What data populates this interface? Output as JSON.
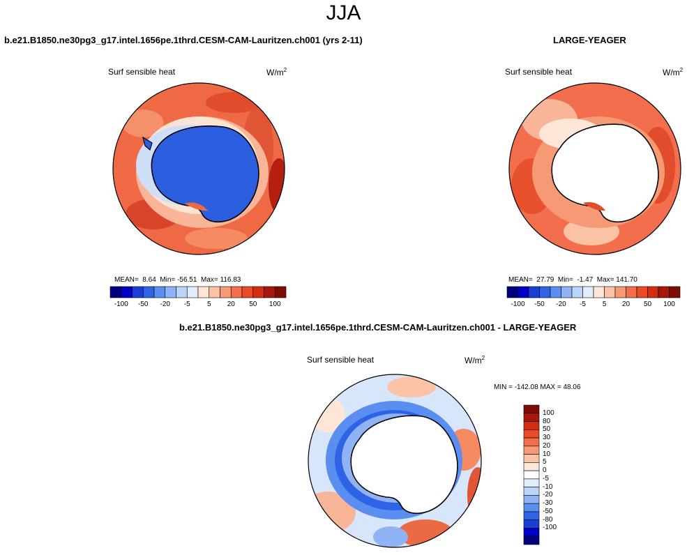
{
  "season": "JJA",
  "panels": {
    "model": {
      "case_title": "b.e21.B1850.ne30pg3_g17.intel.1656pe.1thrd.CESM-CAM-Lauritzen.ch001 (yrs 2-11)",
      "variable": "Surf sensible heat",
      "units_base": "W/m",
      "units_exp": "2",
      "stats": {
        "mean_label": "MEAN=",
        "mean": "8.64",
        "min_label": "Min=",
        "min": "-56.51",
        "max_label": "Max=",
        "max": "116.83"
      }
    },
    "obs": {
      "case_title": "LARGE-YEAGER",
      "variable": "Surf sensible heat",
      "units_base": "W/m",
      "units_exp": "2",
      "stats": {
        "mean_label": "MEAN=",
        "mean": "27.79",
        "min_label": "Min=",
        "min": "-1.47",
        "max_label": "Max=",
        "max": "141.70"
      }
    },
    "diff": {
      "case_title": "b.e21.B1850.ne30pg3_g17.intel.1656pe.1thrd.CESM-CAM-Lauritzen.ch001 - LARGE-YEAGER",
      "variable": "Surf sensible heat",
      "units_base": "W/m",
      "units_exp": "2",
      "minmax_label": "MIN = -142.08 MAX = 48.06"
    }
  },
  "colorbar_horizontal": {
    "colors": [
      "#00007f",
      "#0000c8",
      "#1a3fd4",
      "#2f63e6",
      "#5a8ef0",
      "#8fb3f5",
      "#bcd3fa",
      "#e2edfc",
      "#fde6d8",
      "#fbc3a6",
      "#f69a76",
      "#f26e4c",
      "#ea4a24",
      "#d22d10",
      "#a8180a",
      "#7c0c04"
    ],
    "labels": [
      "-100",
      "-50",
      "-20",
      "-5",
      "5",
      "20",
      "50",
      "100"
    ]
  },
  "colorbar_vertical": {
    "colors": [
      "#7c0c04",
      "#a8180a",
      "#d22d10",
      "#ea4a24",
      "#f26e4c",
      "#f69a76",
      "#fbc3a6",
      "#fde6d8",
      "#ffffff",
      "#e2edfc",
      "#bcd3fa",
      "#8fb3f5",
      "#5a8ef0",
      "#2f63e6",
      "#1a3fd4",
      "#0000c8",
      "#00007f"
    ],
    "labels": [
      "100",
      "80",
      "50",
      "30",
      "20",
      "10",
      "5",
      "0",
      "-5",
      "-10",
      "-20",
      "-30",
      "-50",
      "-80",
      "-100"
    ]
  }
}
